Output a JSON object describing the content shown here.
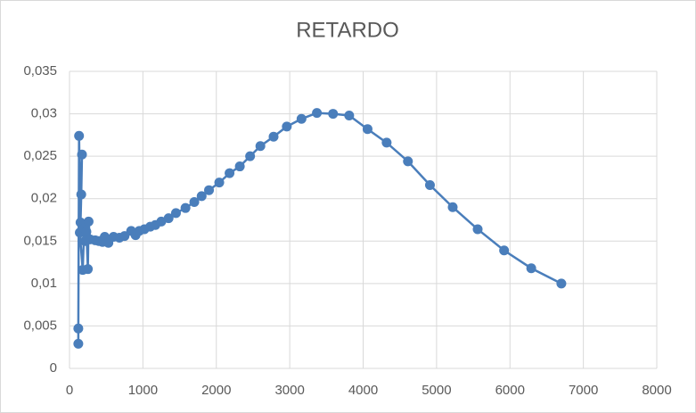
{
  "chart_data": {
    "type": "scatter",
    "title": "RETARDO",
    "x": [
      120,
      120,
      130,
      150,
      160,
      170,
      140,
      180,
      200,
      210,
      230,
      250,
      260,
      280,
      350,
      400,
      450,
      480,
      530,
      600,
      680,
      750,
      840,
      900,
      950,
      1020,
      1100,
      1170,
      1250,
      1350,
      1450,
      1580,
      1700,
      1800,
      1900,
      2040,
      2180,
      2320,
      2460,
      2600,
      2780,
      2960,
      3160,
      3370,
      3590,
      3810,
      4060,
      4320,
      4610,
      4910,
      5220,
      5560,
      5920,
      6290,
      6700
    ],
    "values": [
      0.0029,
      0.0047,
      0.0274,
      0.0172,
      0.0205,
      0.0252,
      0.016,
      0.0116,
      0.0165,
      0.015,
      0.0161,
      0.0117,
      0.0173,
      0.0152,
      0.0151,
      0.015,
      0.0149,
      0.0155,
      0.0148,
      0.0155,
      0.0154,
      0.0156,
      0.0162,
      0.0157,
      0.0162,
      0.0164,
      0.0167,
      0.0169,
      0.0173,
      0.0177,
      0.0183,
      0.0189,
      0.0196,
      0.0203,
      0.021,
      0.0219,
      0.023,
      0.0238,
      0.025,
      0.0262,
      0.0273,
      0.0285,
      0.0294,
      0.0301,
      0.03,
      0.0298,
      0.0282,
      0.0266,
      0.0244,
      0.0216,
      0.019,
      0.0164,
      0.0139,
      0.0118,
      0.01
    ],
    "color": "#4a7ebb",
    "xlim": [
      0,
      8000
    ],
    "xticks": [
      0,
      1000,
      2000,
      3000,
      4000,
      5000,
      6000,
      7000,
      8000
    ],
    "ylim": [
      0,
      0.035
    ],
    "yticks": [
      0,
      {
        "value": 0.005,
        "label": "0,005"
      },
      {
        "value": 0.01,
        "label": "0,01"
      },
      {
        "value": 0.015,
        "label": "0,015"
      },
      {
        "value": 0.02,
        "label": "0,02"
      },
      {
        "value": 0.025,
        "label": "0,025"
      },
      {
        "value": 0.03,
        "label": "0,03"
      },
      {
        "value": 0.035,
        "label": "0,035"
      }
    ],
    "grid": true
  }
}
